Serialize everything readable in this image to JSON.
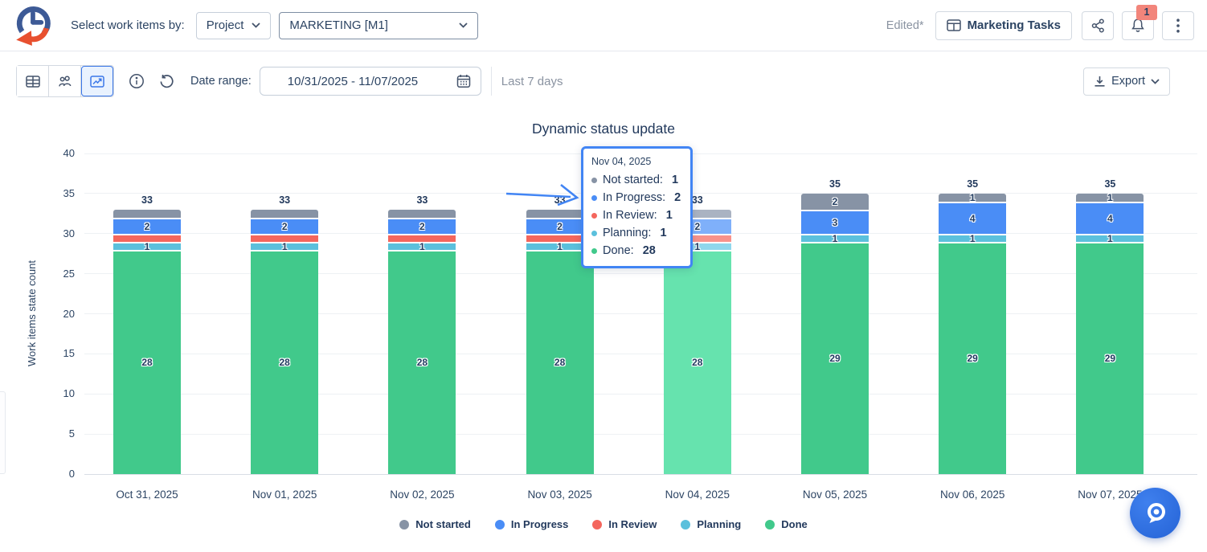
{
  "header": {
    "logo_icon": "clock-refresh-logo",
    "select_label": "Select work items by:",
    "project_dropdown": {
      "value": "Project",
      "icon": "chevron-down-icon"
    },
    "scope_dropdown": {
      "value": "MARKETING [M1]",
      "icon": "chevron-down-icon"
    },
    "edited": "Edited*",
    "board_button": {
      "label": "Marketing Tasks",
      "icon": "table-icon"
    },
    "share_icon": "share-icon",
    "notifications": {
      "icon": "bell-icon",
      "badge": "1"
    },
    "menu_icon": "kebab-menu-icon"
  },
  "toolbar": {
    "view_buttons": [
      {
        "icon": "table-view-icon",
        "active": false
      },
      {
        "icon": "people-view-icon",
        "active": false
      },
      {
        "icon": "chart-view-icon",
        "active": true
      }
    ],
    "info_icon": "info-icon",
    "reset_icon": "reset-icon",
    "date_range_label": "Date range:",
    "date_range_value": "10/31/2025 - 11/07/2025",
    "calendar_icon": "calendar-icon",
    "period_hint": "Last 7 days",
    "export": {
      "label": "Export",
      "icon": "download-icon",
      "chevron": "chevron-down-icon"
    }
  },
  "chart_data": {
    "type": "bar",
    "stacked": true,
    "title": "Dynamic status update",
    "ylabel": "Work items state count",
    "xlabel": "",
    "ylim": [
      0,
      40
    ],
    "yticks": [
      0,
      5,
      10,
      15,
      20,
      25,
      30,
      35,
      40
    ],
    "grid": true,
    "legend_position": "bottom",
    "categories": [
      "Oct 31, 2025",
      "Nov 01, 2025",
      "Nov 02, 2025",
      "Nov 03, 2025",
      "Nov 04, 2025",
      "Nov 05, 2025",
      "Nov 06, 2025",
      "Nov 07, 2025"
    ],
    "totals": [
      33,
      33,
      33,
      33,
      33,
      35,
      35,
      35
    ],
    "series": [
      {
        "name": "Not started",
        "color": "#8793a5",
        "hover_color": "#aab3c2",
        "values": [
          1,
          1,
          1,
          1,
          1,
          2,
          1,
          1
        ],
        "labels_shown": [
          false,
          false,
          false,
          false,
          false,
          true,
          true,
          true
        ]
      },
      {
        "name": "In Progress",
        "color": "#4a8df6",
        "hover_color": "#7fb0fa",
        "values": [
          2,
          2,
          2,
          2,
          2,
          3,
          4,
          4
        ],
        "labels_shown": [
          true,
          true,
          true,
          true,
          true,
          true,
          true,
          true
        ]
      },
      {
        "name": "In Review",
        "color": "#f4665d",
        "hover_color": "#f8928b",
        "values": [
          1,
          1,
          1,
          1,
          1,
          0,
          0,
          0
        ],
        "labels_shown": [
          false,
          false,
          false,
          false,
          false,
          false,
          false,
          false
        ]
      },
      {
        "name": "Planning",
        "color": "#5bc0dc",
        "hover_color": "#8fd7ec",
        "values": [
          1,
          1,
          1,
          1,
          1,
          1,
          1,
          1
        ],
        "labels_shown": [
          true,
          true,
          true,
          true,
          true,
          true,
          true,
          true
        ]
      },
      {
        "name": "Done",
        "color": "#41c98b",
        "hover_color": "#66e3ae",
        "values": [
          28,
          28,
          28,
          28,
          28,
          29,
          29,
          29
        ],
        "labels_shown": [
          true,
          true,
          true,
          true,
          true,
          true,
          true,
          true
        ]
      }
    ],
    "highlighted_index": 4,
    "tooltip": {
      "date": "Nov 04, 2025",
      "rows": [
        {
          "label": "Not started",
          "value": "1"
        },
        {
          "label": "In Progress",
          "value": "2"
        },
        {
          "label": "In Review",
          "value": "1"
        },
        {
          "label": "Planning",
          "value": "1"
        },
        {
          "label": "Done",
          "value": "28"
        }
      ]
    }
  },
  "floating_button": {
    "icon": "assistant-bubble-icon"
  }
}
